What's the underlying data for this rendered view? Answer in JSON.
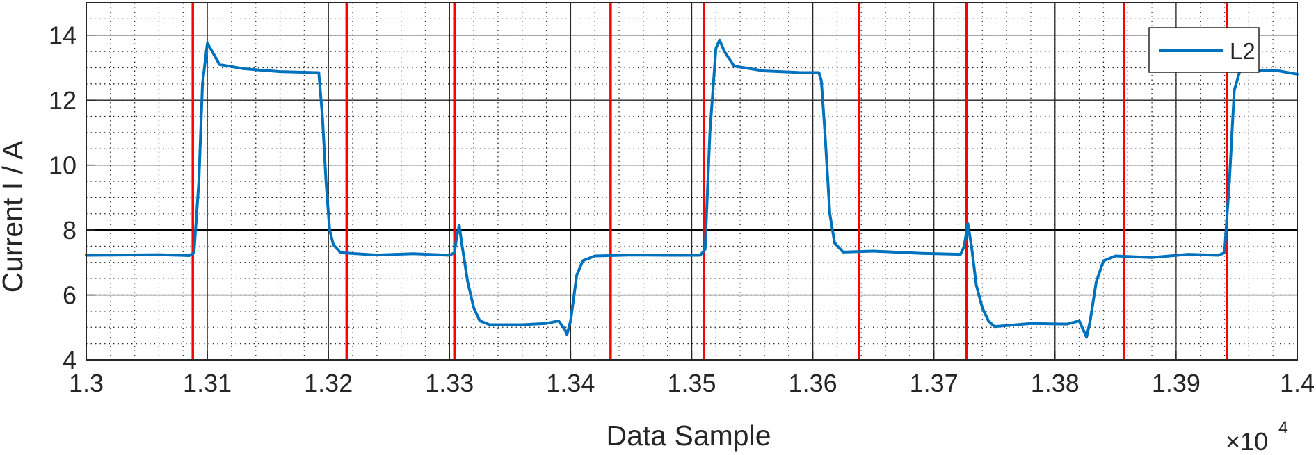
{
  "chart_data": {
    "type": "line",
    "xlabel": "Data Sample",
    "ylabel": "Current I / A",
    "x_exponent_label": "×10",
    "x_exponent_power": "4",
    "xlim": [
      13000,
      14000
    ],
    "ylim": [
      4,
      15
    ],
    "x_ticks": [
      13000,
      13100,
      13200,
      13300,
      13400,
      13500,
      13600,
      13700,
      13800,
      13900,
      14000
    ],
    "x_tick_labels": [
      "1.3",
      "1.31",
      "1.32",
      "1.33",
      "1.34",
      "1.35",
      "1.36",
      "1.37",
      "1.38",
      "1.39",
      "1.4"
    ],
    "y_ticks": [
      4,
      6,
      8,
      10,
      12,
      14
    ],
    "y_tick_labels": [
      "4",
      "6",
      "8",
      "10",
      "12",
      "14"
    ],
    "grid": true,
    "minor_grid": true,
    "reference_line_y": 8,
    "legend": {
      "position": "top-right",
      "entries": [
        "L2"
      ]
    },
    "colors": {
      "series": "#0072bd",
      "markers": "#ff0000"
    },
    "vertical_markers": [
      13088,
      13215,
      13304,
      13433,
      13510,
      13638,
      13727,
      13857,
      13942
    ],
    "series": [
      {
        "name": "L2",
        "points": [
          [
            13000,
            7.22
          ],
          [
            13030,
            7.23
          ],
          [
            13060,
            7.24
          ],
          [
            13085,
            7.21
          ],
          [
            13089,
            7.3
          ],
          [
            13093,
            9.5
          ],
          [
            13096,
            12.5
          ],
          [
            13100,
            13.75
          ],
          [
            13104,
            13.5
          ],
          [
            13110,
            13.1
          ],
          [
            13130,
            12.97
          ],
          [
            13160,
            12.88
          ],
          [
            13190,
            12.85
          ],
          [
            13192,
            12.85
          ],
          [
            13195,
            11.5
          ],
          [
            13198,
            9.5
          ],
          [
            13201,
            8.0
          ],
          [
            13204,
            7.55
          ],
          [
            13210,
            7.3
          ],
          [
            13240,
            7.23
          ],
          [
            13270,
            7.27
          ],
          [
            13300,
            7.22
          ],
          [
            13304,
            7.3
          ],
          [
            13306,
            7.8
          ],
          [
            13308,
            8.15
          ],
          [
            13310,
            7.6
          ],
          [
            13315,
            6.4
          ],
          [
            13320,
            5.6
          ],
          [
            13325,
            5.2
          ],
          [
            13333,
            5.08
          ],
          [
            13360,
            5.08
          ],
          [
            13380,
            5.12
          ],
          [
            13390,
            5.2
          ],
          [
            13395,
            4.95
          ],
          [
            13397,
            4.78
          ],
          [
            13400,
            5.2
          ],
          [
            13405,
            6.6
          ],
          [
            13410,
            7.05
          ],
          [
            13420,
            7.2
          ],
          [
            13450,
            7.23
          ],
          [
            13480,
            7.22
          ],
          [
            13507,
            7.22
          ],
          [
            13511,
            7.4
          ],
          [
            13515,
            11.0
          ],
          [
            13520,
            13.6
          ],
          [
            13523,
            13.85
          ],
          [
            13527,
            13.5
          ],
          [
            13535,
            13.05
          ],
          [
            13560,
            12.9
          ],
          [
            13590,
            12.85
          ],
          [
            13605,
            12.85
          ],
          [
            13607,
            12.6
          ],
          [
            13610,
            11.0
          ],
          [
            13614,
            8.5
          ],
          [
            13618,
            7.6
          ],
          [
            13625,
            7.32
          ],
          [
            13650,
            7.35
          ],
          [
            13690,
            7.28
          ],
          [
            13722,
            7.25
          ],
          [
            13725,
            7.5
          ],
          [
            13728,
            8.2
          ],
          [
            13731,
            7.5
          ],
          [
            13735,
            6.3
          ],
          [
            13740,
            5.6
          ],
          [
            13745,
            5.2
          ],
          [
            13750,
            5.02
          ],
          [
            13780,
            5.12
          ],
          [
            13810,
            5.1
          ],
          [
            13820,
            5.2
          ],
          [
            13823,
            4.95
          ],
          [
            13826,
            4.7
          ],
          [
            13829,
            5.2
          ],
          [
            13834,
            6.4
          ],
          [
            13840,
            7.05
          ],
          [
            13850,
            7.2
          ],
          [
            13880,
            7.15
          ],
          [
            13910,
            7.25
          ],
          [
            13935,
            7.22
          ],
          [
            13940,
            7.3
          ],
          [
            13944,
            9.5
          ],
          [
            13948,
            12.3
          ],
          [
            13953,
            12.95
          ],
          [
            13970,
            12.92
          ],
          [
            13985,
            12.9
          ],
          [
            14000,
            12.8
          ]
        ]
      }
    ]
  }
}
